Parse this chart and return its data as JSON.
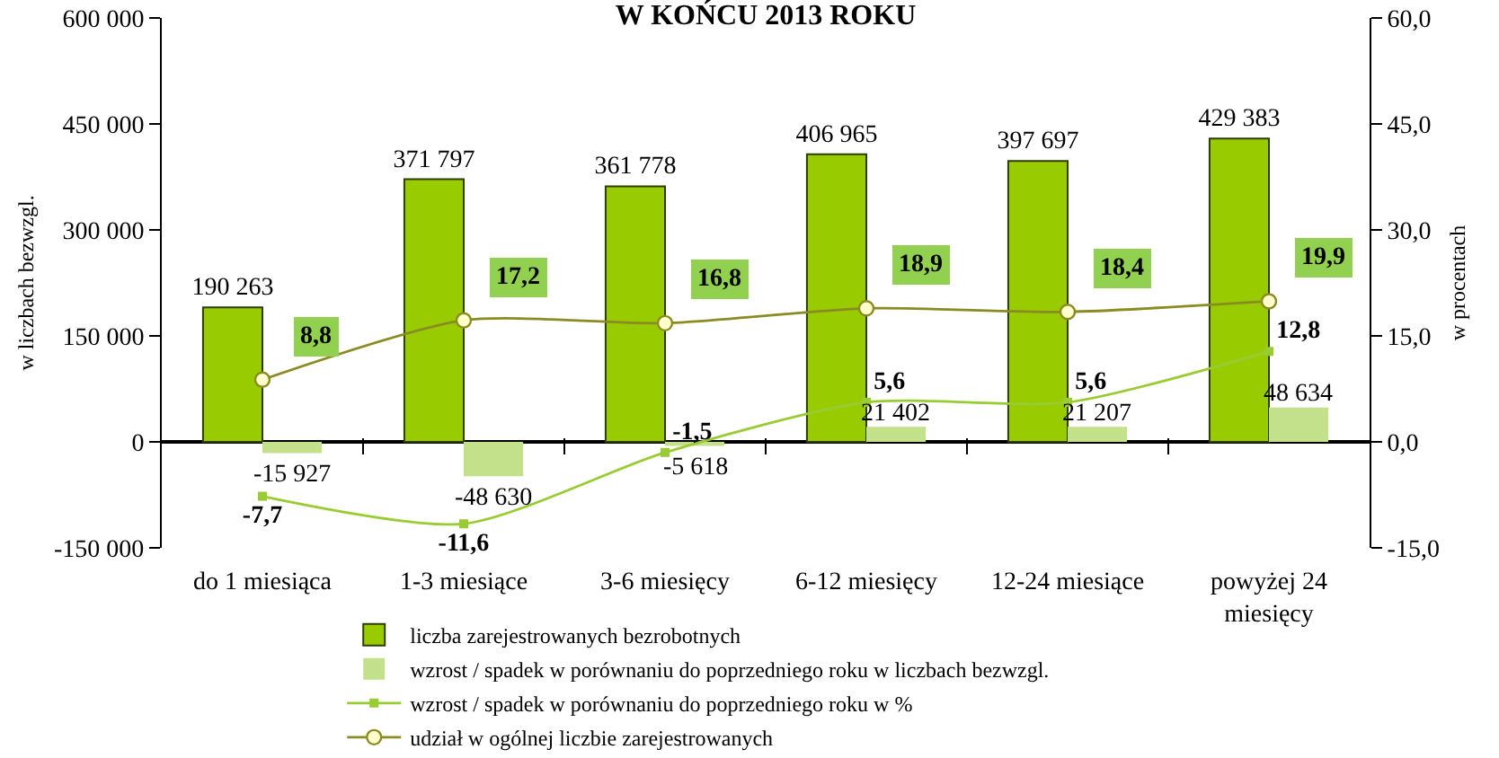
{
  "chart_data": {
    "type": "bar",
    "title": "W KOŃCU 2013 ROKU",
    "ylabel": "w liczbach bezwzgl.",
    "y2label": "w procentach",
    "categories": [
      "do 1 miesiąca",
      "1-3 miesiące",
      "3-6 miesięcy",
      "6-12 miesięcy",
      "12-24 miesiące",
      "powyżej 24 miesięcy"
    ],
    "series": [
      {
        "name": "liczba zarejestrowanych bezrobotnych",
        "type": "bar",
        "color": "#99cc00",
        "values": [
          190263,
          371797,
          361778,
          406965,
          397697,
          429383
        ],
        "value_labels": [
          "190 263",
          "371 797",
          "361 778",
          "406 965",
          "397 697",
          "429 383"
        ]
      },
      {
        "name": "wzrost / spadek w porównaniu do poprzedniego roku w liczbach bezwzgl.",
        "type": "bar",
        "color": "#c3e08a",
        "values": [
          -15927,
          -48630,
          -5618,
          21402,
          21207,
          48634
        ],
        "value_labels": [
          "-15 927",
          "-48 630",
          "-5 618",
          "21 402",
          "21 207",
          "48 634"
        ]
      },
      {
        "name": "wzrost / spadek w porównaniu do poprzedniego roku w %",
        "type": "line",
        "axis": "y2",
        "color": "#99cc33",
        "marker": "square",
        "values": [
          -7.7,
          -11.6,
          -1.5,
          5.6,
          5.6,
          12.8
        ],
        "value_labels": [
          "-7,7",
          "-11,6",
          "-1,5",
          "5,6",
          "5,6",
          "12,8"
        ]
      },
      {
        "name": "udział w ogólnej liczbie zarejestrowanych",
        "type": "line",
        "axis": "y2",
        "color": "#8b8b23",
        "marker": "circle",
        "values": [
          8.8,
          17.2,
          16.8,
          18.9,
          18.4,
          19.9
        ],
        "value_labels": [
          "8,8",
          "17,2",
          "16,8",
          "18,9",
          "18,4",
          "19,9"
        ]
      }
    ],
    "ylim": [
      -150000,
      600000
    ],
    "yticks": [
      {
        "value": -150000,
        "label": "-150 000"
      },
      {
        "value": 0,
        "label": "0"
      },
      {
        "value": 150000,
        "label": "150 000"
      },
      {
        "value": 300000,
        "label": "300 000"
      },
      {
        "value": 450000,
        "label": "450 000"
      },
      {
        "value": 600000,
        "label": "600 000"
      }
    ],
    "y2lim": [
      -15,
      60
    ],
    "y2ticks": [
      {
        "value": -15,
        "label": "-15,0"
      },
      {
        "value": 0,
        "label": "0,0"
      },
      {
        "value": 15,
        "label": "15,0"
      },
      {
        "value": 30,
        "label": "30,0"
      },
      {
        "value": 45,
        "label": "45,0"
      },
      {
        "value": 60,
        "label": "60,0"
      }
    ],
    "legend": "bottom",
    "line_style": "solid"
  }
}
